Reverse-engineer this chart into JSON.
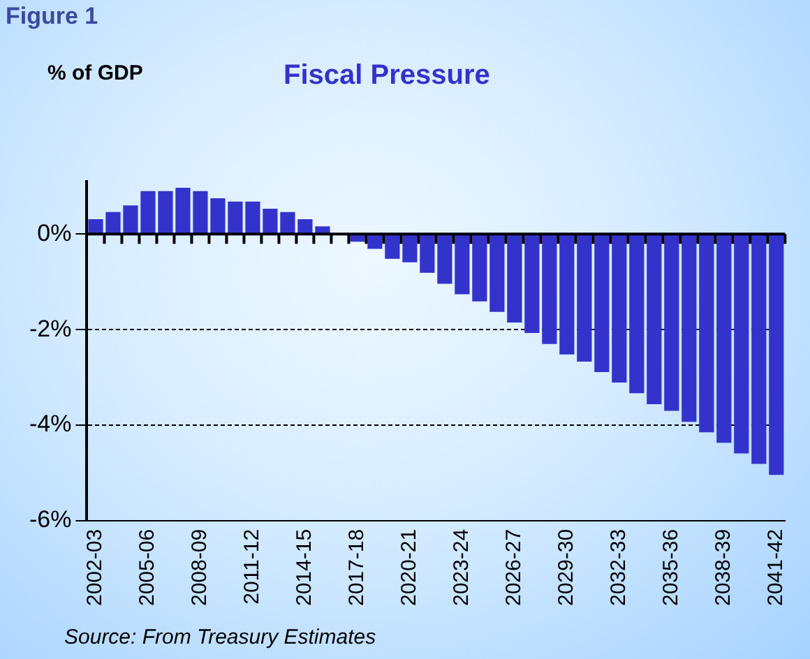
{
  "chart_data": {
    "type": "bar",
    "title": "Fiscal Pressure",
    "ylabel": "% of GDP",
    "annotations": [
      "Figure 1",
      "Source: From Treasury Estimates"
    ],
    "categories": [
      "2002-03",
      null,
      null,
      "2005-06",
      null,
      null,
      "2008-09",
      null,
      null,
      "2011-12",
      null,
      null,
      "2014-15",
      null,
      null,
      "2017-18",
      null,
      null,
      "2020-21",
      null,
      null,
      "2023-24",
      null,
      null,
      "2026-27",
      null,
      null,
      "2029-30",
      null,
      null,
      "2032-33",
      null,
      null,
      "2035-36",
      null,
      null,
      "2038-39",
      null,
      null,
      "2041-42"
    ],
    "values": [
      0.31,
      0.46,
      0.6,
      0.9,
      0.9,
      0.97,
      0.9,
      0.75,
      0.68,
      0.68,
      0.53,
      0.46,
      0.31,
      0.16,
      0,
      -0.16,
      -0.31,
      -0.52,
      -0.59,
      -0.81,
      -1.04,
      -1.26,
      -1.41,
      -1.63,
      -1.85,
      -2.07,
      -2.3,
      -2.52,
      -2.67,
      -2.89,
      -3.11,
      -3.33,
      -3.56,
      -3.7,
      -3.93,
      -4.15,
      -4.37,
      -4.59,
      -4.81,
      -5.04
    ],
    "color": "#3333cc",
    "ylim": [
      -6,
      1.1
    ],
    "yticks": [
      {
        "value": -6,
        "label": "-6%"
      },
      {
        "value": -4,
        "label": "-4%"
      },
      {
        "value": -2,
        "label": "-2%"
      },
      {
        "value": 0,
        "label": "0%"
      }
    ],
    "grid": "y",
    "legend": false
  }
}
